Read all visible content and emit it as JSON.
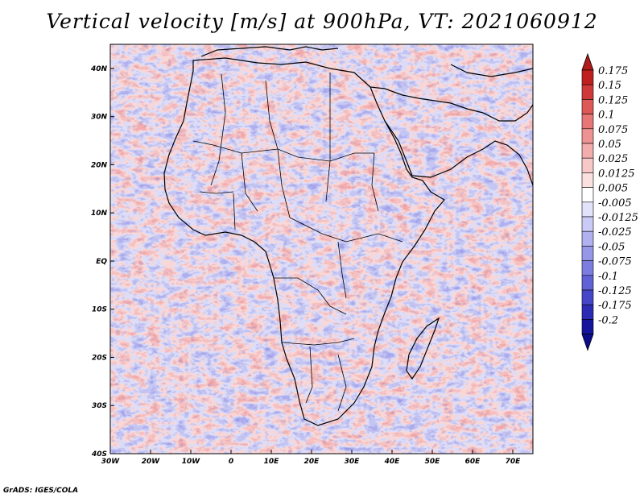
{
  "title": "Vertical velocity [m/s] at 900hPa, VT: 2021060912",
  "footer": "GrADS: IGES/COLA",
  "map": {
    "region": "Africa",
    "lon_range": [
      -30,
      75
    ],
    "lat_range": [
      -40,
      45
    ],
    "lat_labels": [
      "40N",
      "30N",
      "20N",
      "10N",
      "EQ",
      "10S",
      "20S",
      "30S",
      "40S"
    ],
    "lat_values": [
      40,
      30,
      20,
      10,
      0,
      -10,
      -20,
      -30,
      -40
    ],
    "lon_labels": [
      "30W",
      "20W",
      "10W",
      "0",
      "10E",
      "20E",
      "30E",
      "40E",
      "50E",
      "60E",
      "70E"
    ],
    "lon_values": [
      -30,
      -20,
      -10,
      0,
      10,
      20,
      30,
      40,
      50,
      60,
      70
    ]
  },
  "colorbar": {
    "labels": [
      "0.175",
      "0.15",
      "0.125",
      "0.1",
      "0.075",
      "0.05",
      "0.025",
      "0.0125",
      "0.005",
      "-0.005",
      "-0.0125",
      "-0.025",
      "-0.05",
      "-0.075",
      "-0.1",
      "-0.125",
      "-0.175",
      "-0.2"
    ],
    "colors": [
      "#c01f1f",
      "#d0393a",
      "#de5858",
      "#e77676",
      "#ee9393",
      "#f3adad",
      "#f7c8c8",
      "#fbe0e0",
      "#ffffff",
      "#e2e2fb",
      "#cacaf6",
      "#b1b1f0",
      "#9797e8",
      "#7d7de0",
      "#6262d7",
      "#4646c9",
      "#2b2bb5",
      "#14149c"
    ]
  }
}
